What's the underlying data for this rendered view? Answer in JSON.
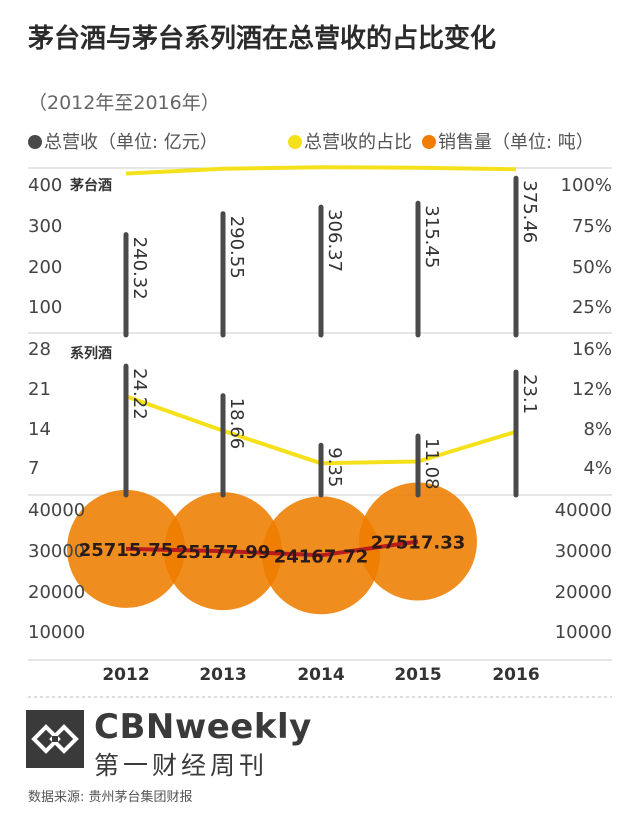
{
  "header": {
    "title": "茅台酒与茅台系列酒在总营收的占比变化",
    "subtitle": "（2012年至2016年）"
  },
  "legend": {
    "revenue": "总营收（单位: 亿元）",
    "share": "总营收的占比",
    "sales": "销售量（单位: 吨）"
  },
  "colors": {
    "bar": "#4a4a4a",
    "share_line": "#f5e11b",
    "bubble": "#ee7d00",
    "sales_line": "#b81c1c",
    "grid": "#cccccc"
  },
  "chart_data": [
    {
      "type": "bar",
      "label": "茅台酒",
      "categories": [
        "2012",
        "2013",
        "2014",
        "2015",
        "2016"
      ],
      "series": [
        {
          "name": "总营收（单位: 亿元）",
          "values": [
            240.32,
            290.55,
            306.37,
            315.45,
            375.46
          ]
        }
      ],
      "value_labels": [
        "240.32",
        "290.55",
        "306.37",
        "315.45",
        "375.46"
      ],
      "left_ticks": [
        "400",
        "300",
        "200",
        "100"
      ],
      "right_ticks": [
        "100%",
        "75%",
        "50%",
        "25%"
      ],
      "ylim": [
        0,
        400
      ],
      "share": {
        "name": "总营收的占比",
        "values": [
          96.7,
          99.5,
          100.5,
          100.2,
          99.3
        ],
        "ylim_percent": [
          0,
          100
        ]
      }
    },
    {
      "type": "bar",
      "label": "系列酒",
      "categories": [
        "2012",
        "2013",
        "2014",
        "2015",
        "2016"
      ],
      "series": [
        {
          "name": "总营收（单位: 亿元）",
          "values": [
            24.22,
            18.66,
            9.35,
            11.08,
            23.1
          ]
        }
      ],
      "value_labels": [
        "24.22",
        "18.66",
        "9.35",
        "11.08",
        "23.1"
      ],
      "left_ticks": [
        "28",
        "21",
        "14",
        "7"
      ],
      "right_ticks": [
        "16%",
        "12%",
        "8%",
        "4%"
      ],
      "ylim": [
        0,
        28
      ],
      "share": {
        "name": "总营收的占比",
        "values": [
          10.6,
          6.9,
          3.4,
          3.6,
          6.8
        ],
        "ylim_percent": [
          0,
          16
        ]
      }
    },
    {
      "type": "scatter",
      "categories": [
        "2012",
        "2013",
        "2014",
        "2015"
      ],
      "series": [
        {
          "name": "销售量（单位: 吨）",
          "values": [
            25715.75,
            25177.99,
            24167.72,
            27517.33
          ]
        }
      ],
      "value_labels": [
        "25715.75",
        "25177.99",
        "24167.72",
        "27517.33"
      ],
      "left_ticks": [
        "40000",
        "30000",
        "20000",
        "10000"
      ],
      "right_ticks": [
        "40000",
        "30000",
        "20000",
        "10000"
      ],
      "ylim": [
        0,
        40000
      ]
    }
  ],
  "x_tick_labels": [
    "2012",
    "2013",
    "2014",
    "2015",
    "2016"
  ],
  "footer": {
    "brand_en": "CBNweekly",
    "brand_cn": "第一财经周刊",
    "source": "数据来源: 贵州茅台集团财报"
  }
}
